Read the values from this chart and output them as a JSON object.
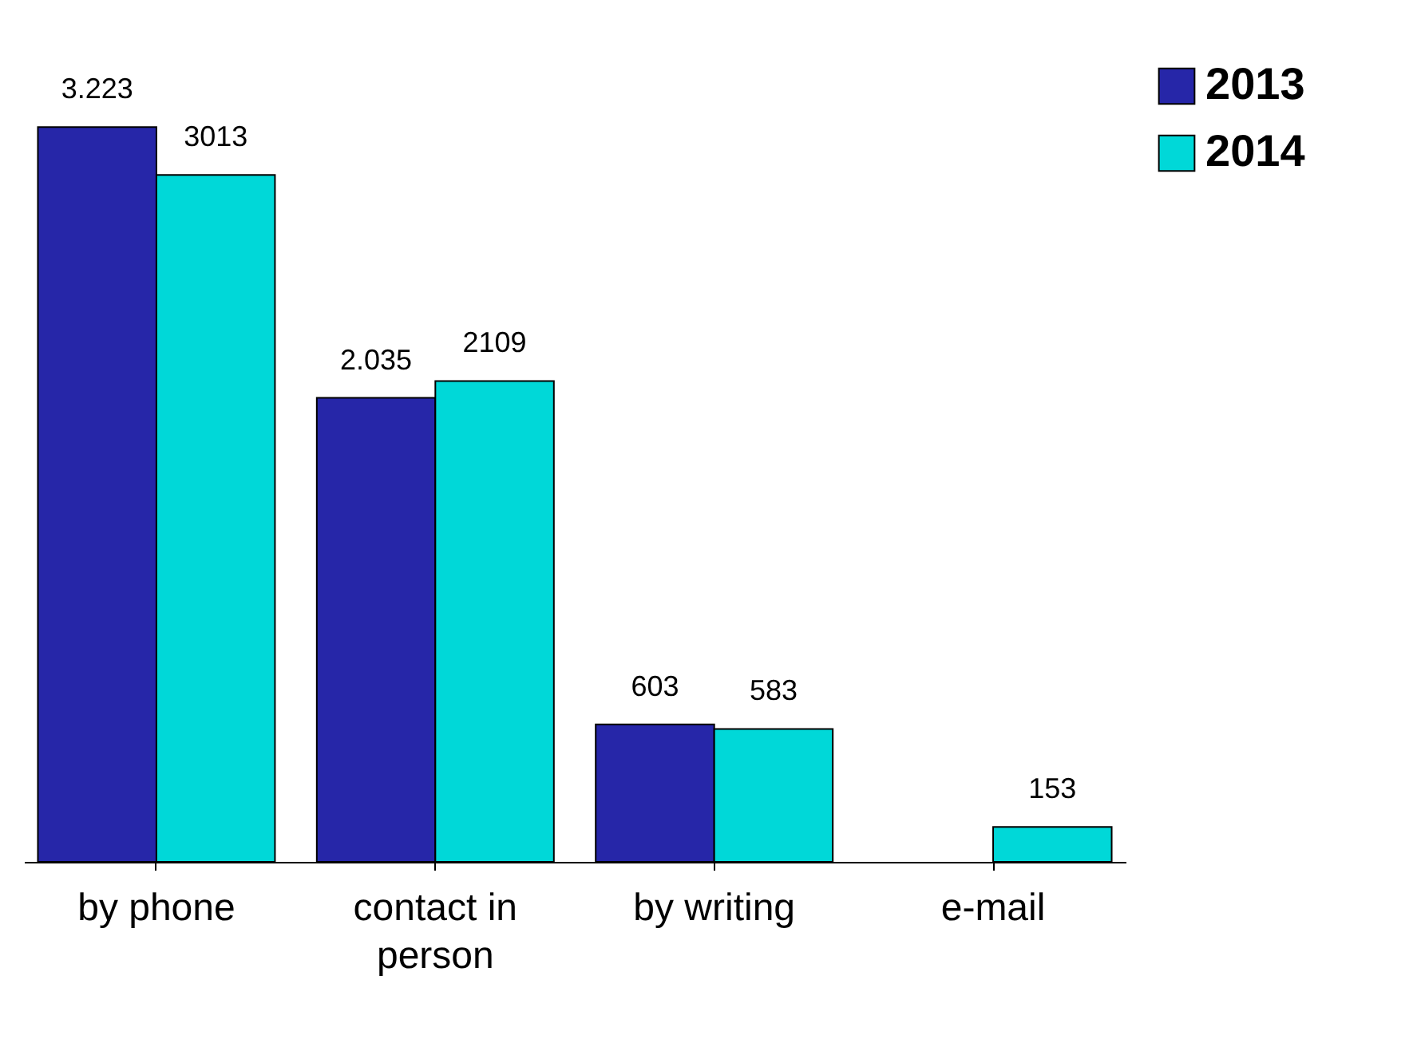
{
  "chart_data": {
    "type": "bar",
    "categories": [
      "by phone",
      "contact in person",
      "by writing",
      "e-mail"
    ],
    "series": [
      {
        "name": "2013",
        "color": "#2626a8",
        "values": [
          3223,
          2035,
          603,
          null
        ],
        "value_labels": [
          "3.223",
          "2.035",
          "603",
          null
        ]
      },
      {
        "name": "2014",
        "color": "#00d8d8",
        "values": [
          3013,
          2109,
          583,
          153
        ],
        "value_labels": [
          "3013",
          "2109",
          "583",
          "153"
        ]
      }
    ],
    "legend": "right"
  }
}
